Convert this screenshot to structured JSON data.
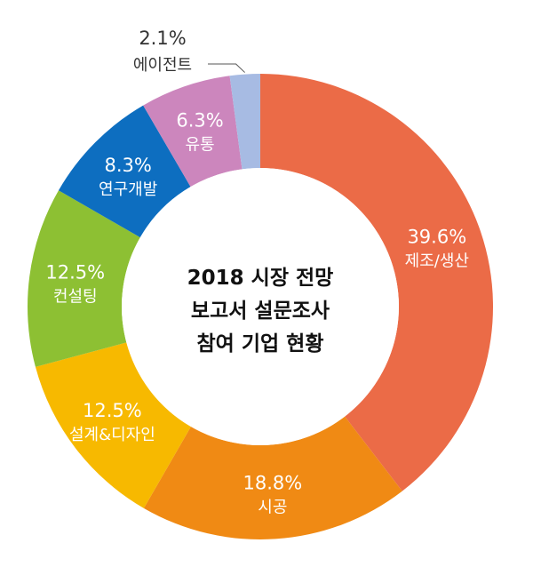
{
  "chart_data": {
    "type": "pie",
    "variant": "donut",
    "title_lines": [
      "2018 시장 전망",
      "보고서 설문조사",
      "참여 기업 현황"
    ],
    "slices": [
      {
        "label": "제조/생산",
        "percent_label": "39.6%",
        "value": 39.6,
        "color": "#EB6B47",
        "label_position": "inside"
      },
      {
        "label": "시공",
        "percent_label": "18.8%",
        "value": 18.8,
        "color": "#F08A14",
        "label_position": "inside"
      },
      {
        "label": "설계&디자인",
        "percent_label": "12.5%",
        "value": 12.5,
        "color": "#F7B900",
        "label_position": "inside"
      },
      {
        "label": "컨설팅",
        "percent_label": "12.5%",
        "value": 12.5,
        "color": "#8DC033",
        "label_position": "inside"
      },
      {
        "label": "연구개발",
        "percent_label": "8.3%",
        "value": 8.3,
        "color": "#0D6EC0",
        "label_position": "inside"
      },
      {
        "label": "유통",
        "percent_label": "6.3%",
        "value": 6.3,
        "color": "#CC86BD",
        "label_position": "inside"
      },
      {
        "label": "에이전트",
        "percent_label": "2.1%",
        "value": 2.1,
        "color": "#A7BBE3",
        "label_position": "outside"
      }
    ]
  }
}
